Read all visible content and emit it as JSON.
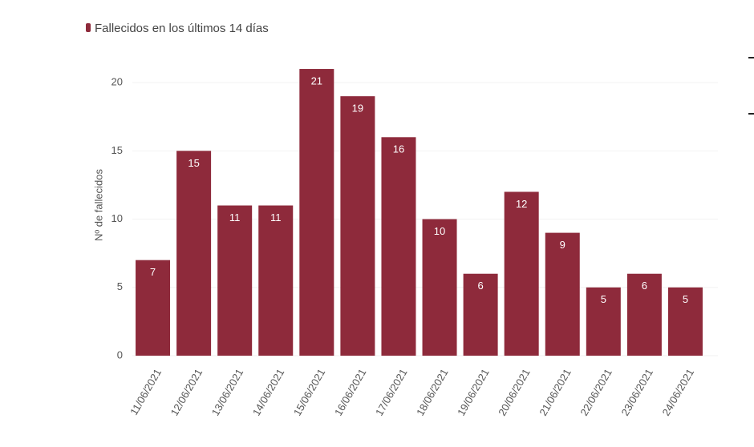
{
  "chart_data": {
    "type": "bar",
    "ylabel": "Nº de fallecidos",
    "categories": [
      "11/06/2021",
      "12/06/2021",
      "13/06/2021",
      "14/06/2021",
      "15/06/2021",
      "16/06/2021",
      "17/06/2021",
      "18/06/2021",
      "19/06/2021",
      "20/06/2021",
      "21/06/2021",
      "22/06/2021",
      "23/06/2021",
      "24/06/2021"
    ],
    "series": [
      {
        "name": "Fallecidos en los últimos 14 días",
        "color": "#8e2a3b",
        "values": [
          7,
          15,
          11,
          11,
          21,
          19,
          16,
          10,
          6,
          12,
          9,
          5,
          6,
          5
        ]
      }
    ],
    "ylim": [
      0,
      22
    ],
    "yticks": [
      0,
      5,
      10,
      15,
      20
    ],
    "grid": true
  }
}
